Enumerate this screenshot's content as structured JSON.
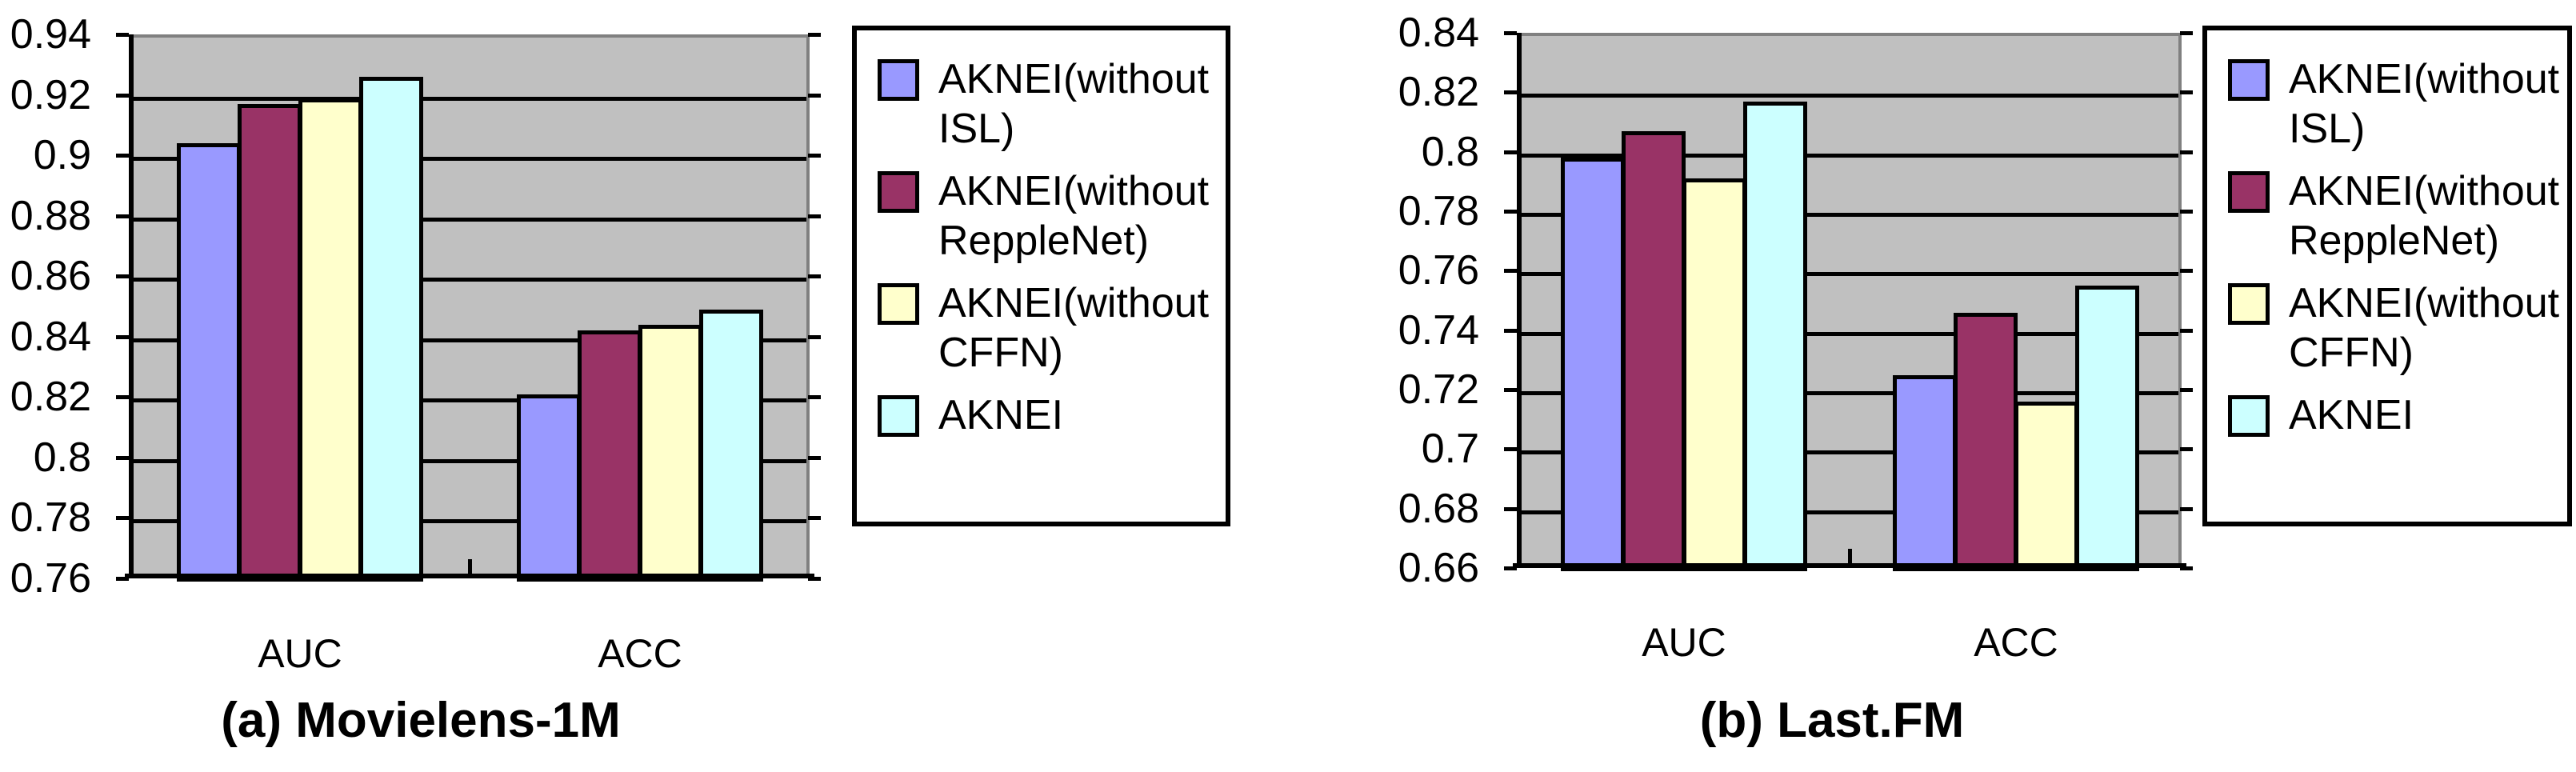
{
  "figure": {
    "background": "#FFFFFF",
    "text_color": "#000000"
  },
  "colors": {
    "plot_background": "#C0C0C0",
    "gridline": "#000000",
    "plot_border_gray": "#808080",
    "bar_border": "#000000",
    "legend_border": "#000000",
    "series1": "#9999FF",
    "series2": "#993366",
    "series3": "#FFFFCC",
    "series4": "#CCFFFF"
  },
  "legend": {
    "entries": [
      {
        "name": "AKNEI(without ISL)",
        "lines": [
          "AKNEI(without",
          "ISL)"
        ],
        "color": "#9999FF"
      },
      {
        "name": "AKNEI(without ReppleNet)",
        "lines": [
          "AKNEI(without",
          "ReppleNet)"
        ],
        "color": "#993366"
      },
      {
        "name": "AKNEI(without CFFN)",
        "lines": [
          "AKNEI(without",
          "CFFN)"
        ],
        "color": "#FFFFCC"
      },
      {
        "name": "AKNEI",
        "lines": [
          "AKNEI"
        ],
        "color": "#CCFFFF"
      }
    ]
  },
  "chart_data": [
    {
      "type": "bar",
      "caption": "(a) Movielens-1M",
      "categories": [
        "AUC",
        "ACC"
      ],
      "series": [
        {
          "name": "AKNEI(without ISL)",
          "color": "#9999FF",
          "values": [
            0.905,
            0.822
          ]
        },
        {
          "name": "AKNEI(without ReppleNet)",
          "color": "#993366",
          "values": [
            0.918,
            0.843
          ]
        },
        {
          "name": "AKNEI(without CFFN)",
          "color": "#FFFFCC",
          "values": [
            0.92,
            0.845
          ]
        },
        {
          "name": "AKNEI",
          "color": "#CCFFFF",
          "values": [
            0.927,
            0.85
          ]
        }
      ],
      "ylim": [
        0.76,
        0.94
      ],
      "ytick_step": 0.02,
      "ytick_labels": [
        "0.94",
        "0.92",
        "0.9",
        "0.88",
        "0.86",
        "0.84",
        "0.82",
        "0.8",
        "0.78",
        "0.76"
      ],
      "grid": true,
      "legend_position": "right",
      "xlabel": "",
      "ylabel": ""
    },
    {
      "type": "bar",
      "caption": "(b) Last.FM",
      "categories": [
        "AUC",
        "ACC"
      ],
      "series": [
        {
          "name": "AKNEI(without ISL)",
          "color": "#9999FF",
          "values": [
            0.799,
            0.726
          ]
        },
        {
          "name": "AKNEI(without ReppleNet)",
          "color": "#993366",
          "values": [
            0.808,
            0.747
          ]
        },
        {
          "name": "AKNEI(without CFFN)",
          "color": "#FFFFCC",
          "values": [
            0.792,
            0.717
          ]
        },
        {
          "name": "AKNEI",
          "color": "#CCFFFF",
          "values": [
            0.818,
            0.756
          ]
        }
      ],
      "ylim": [
        0.66,
        0.84
      ],
      "ytick_step": 0.02,
      "ytick_labels": [
        "0.84",
        "0.82",
        "0.8",
        "0.78",
        "0.76",
        "0.74",
        "0.72",
        "0.7",
        "0.68",
        "0.66"
      ],
      "grid": true,
      "legend_position": "right",
      "xlabel": "",
      "ylabel": ""
    }
  ]
}
